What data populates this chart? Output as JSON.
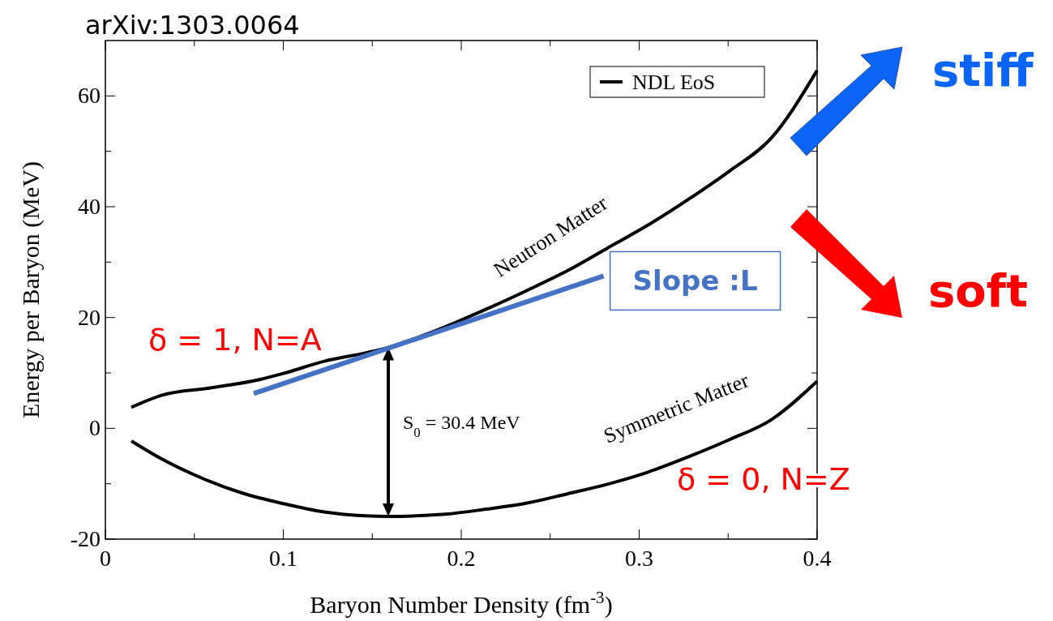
{
  "chart_data": {
    "type": "line",
    "xlabel": "Baryon Number Density  (fm$^{-3}$)",
    "ylabel": "Energy per Baryon  (MeV)",
    "xlim": [
      0,
      0.4
    ],
    "ylim": [
      -20,
      70
    ],
    "xticks": [
      0,
      {
        "value": 0.05,
        "label": null
      },
      0.1,
      {
        "value": 0.15,
        "label": null
      },
      0.2,
      {
        "value": 0.25,
        "label": null
      },
      0.3,
      {
        "value": 0.35,
        "label": null
      },
      0.4
    ],
    "yticks": [
      -20,
      {
        "value": -10,
        "label": null
      },
      0,
      {
        "value": 10,
        "label": null
      },
      20,
      {
        "value": 30,
        "label": null
      },
      40,
      {
        "value": 50,
        "label": null
      },
      60
    ],
    "legend": "top right",
    "grid": false,
    "marker": "none",
    "line_style": "solid",
    "series": [
      {
        "name": "NDL EoS",
        "color": "#000000",
        "x": [
          0.0146,
          0.032,
          0.059,
          0.0866,
          0.1,
          0.123,
          0.146,
          0.159,
          0.178,
          0.196,
          0.214,
          0.237,
          0.26,
          0.282,
          0.305,
          0.328,
          0.351,
          0.374,
          0.4
        ],
        "values": [
          3.8,
          6,
          7.3,
          8.8,
          9.9,
          12.1,
          13.6,
          14.6,
          16.7,
          19,
          21.5,
          24.9,
          28.5,
          32.5,
          36.7,
          41.4,
          46.5,
          52.3,
          64.6
        ]
      },
      {
        "color": "#000000",
        "x": [
          0.0146,
          0.032,
          0.055,
          0.077,
          0.1,
          0.123,
          0.146,
          0.159,
          0.191,
          0.214,
          0.237,
          0.26,
          0.282,
          0.305,
          0.328,
          0.351,
          0.374,
          0.4
        ],
        "values": [
          -2.3,
          -5.6,
          -9.1,
          -11.7,
          -13.6,
          -15.1,
          -15.8,
          -15.9,
          -15.5,
          -14.6,
          -13.5,
          -11.8,
          -10.1,
          -7.9,
          -5.1,
          -2,
          1.5,
          8.5
        ]
      },
      {
        "color": "#4472c4",
        "x": [
          0.0834,
          0.28
        ],
        "values": [
          6.3,
          27.5
        ]
      }
    ],
    "annotations": [
      "S$_{0}$ = 30.4 MeV",
      {
        "text": "Slope :L",
        "x": 0.28,
        "y": 27.5
      },
      "δ = 1, N=A",
      "δ = 0, N=Z",
      "arXiv:1303.0064",
      "stiff",
      "soft",
      {
        "text": "Neutron Matter",
        "x": 0.25,
        "y": 27
      },
      {
        "text": "Symmetric Matter",
        "x": 0.32,
        "y": -6
      }
    ]
  }
}
